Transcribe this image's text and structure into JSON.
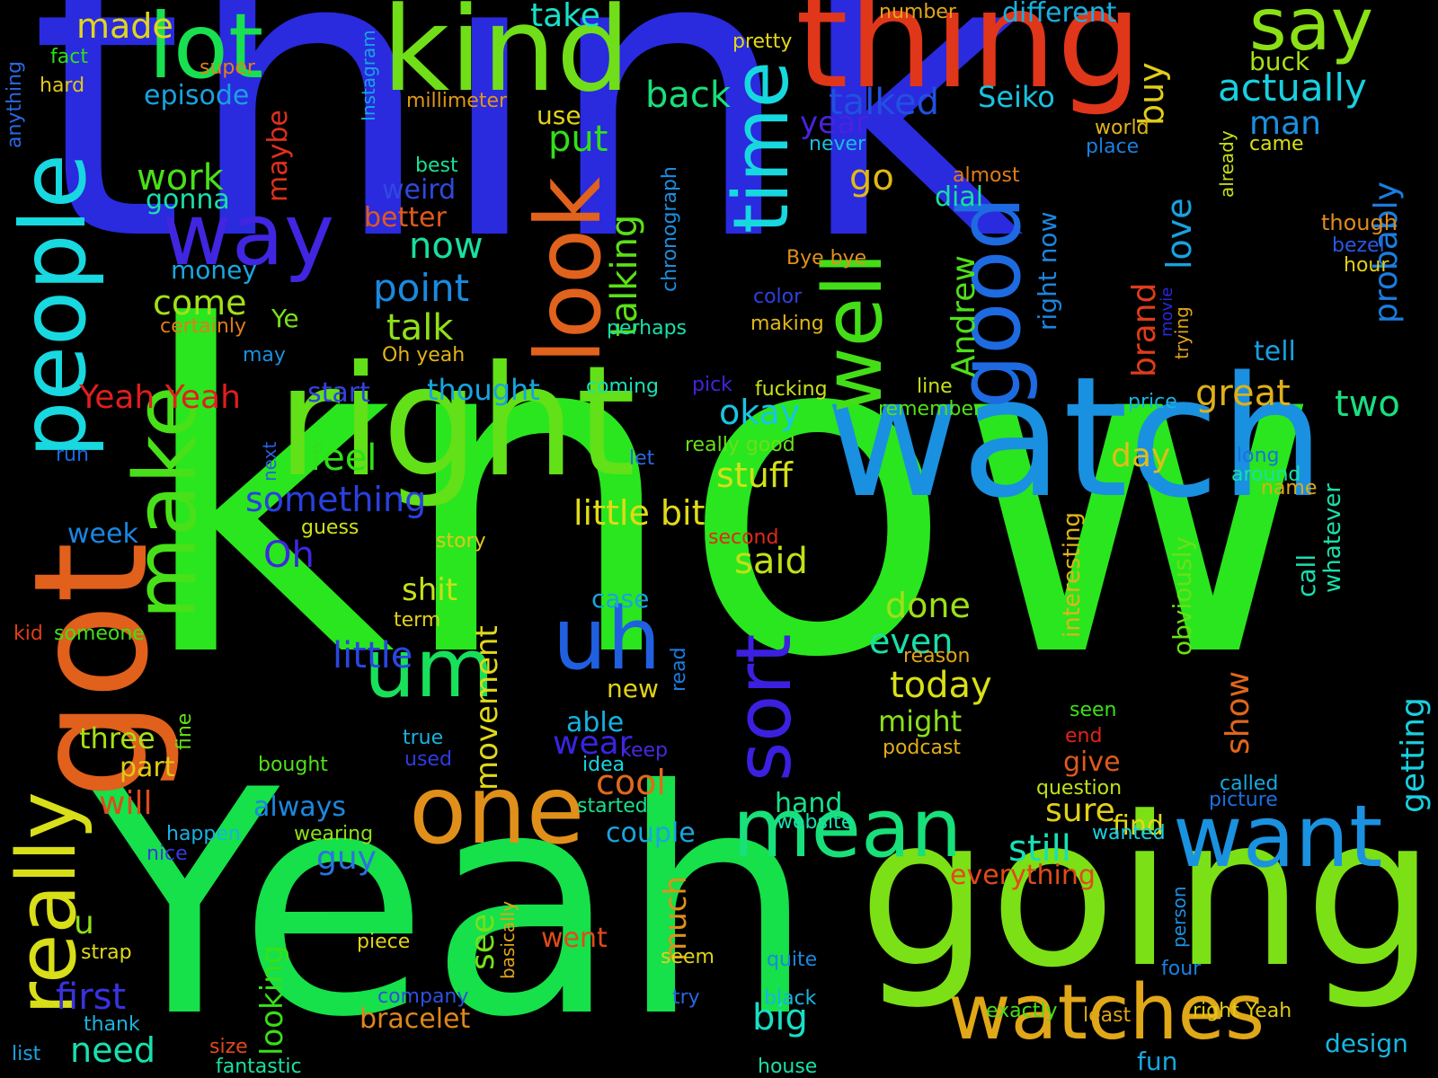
{
  "words": [
    {
      "text": "think",
      "color": "#2a2adf"
    },
    {
      "text": "know",
      "color": "#2ae61e"
    },
    {
      "text": "Yeah",
      "color": "#16e04a"
    },
    {
      "text": "going",
      "color": "#7ce016"
    },
    {
      "text": "watch",
      "color": "#1a90e0"
    },
    {
      "text": "right",
      "color": "#62e018"
    },
    {
      "text": "thing",
      "color": "#e0361a"
    },
    {
      "text": "kind",
      "color": "#70de18"
    },
    {
      "text": "lot",
      "color": "#18e050"
    },
    {
      "text": "say",
      "color": "#8be016"
    },
    {
      "text": "got",
      "color": "#e0601c"
    },
    {
      "text": "people",
      "color": "#18d8e0"
    },
    {
      "text": "way",
      "color": "#4026e0"
    },
    {
      "text": "make",
      "color": "#48e018"
    },
    {
      "text": "really",
      "color": "#d8de18"
    },
    {
      "text": "look",
      "color": "#e0621c"
    },
    {
      "text": "time",
      "color": "#18d8df"
    },
    {
      "text": "well",
      "color": "#44de18"
    },
    {
      "text": "good",
      "color": "#1e6ae0"
    },
    {
      "text": "one",
      "color": "#e0901a"
    },
    {
      "text": "mean",
      "color": "#18e07a"
    },
    {
      "text": "want",
      "color": "#1a92e0"
    },
    {
      "text": "watches",
      "color": "#e0a818"
    },
    {
      "text": "uh",
      "color": "#2060e0"
    },
    {
      "text": "um",
      "color": "#18e05a"
    },
    {
      "text": "sort",
      "color": "#3c20e0"
    },
    {
      "text": "made",
      "color": "#e0d61a"
    },
    {
      "text": "take",
      "color": "#18e0c8"
    },
    {
      "text": "different",
      "color": "#18b0e0"
    },
    {
      "text": "number",
      "color": "#e0a81a"
    },
    {
      "text": "pretty",
      "color": "#e0d81a"
    },
    {
      "text": "Instagram",
      "color": "#18a6e0"
    },
    {
      "text": "buck",
      "color": "#a8e018"
    },
    {
      "text": "actually",
      "color": "#18d0e0"
    },
    {
      "text": "fact",
      "color": "#30e018"
    },
    {
      "text": "super",
      "color": "#e0821a"
    },
    {
      "text": "hard",
      "color": "#e0c818"
    },
    {
      "text": "anything",
      "color": "#2a68e0"
    },
    {
      "text": "millimeter",
      "color": "#e0961a"
    },
    {
      "text": "episode",
      "color": "#18a2e0"
    },
    {
      "text": "back",
      "color": "#18e07a"
    },
    {
      "text": "talked",
      "color": "#2250e0"
    },
    {
      "text": "Seiko",
      "color": "#18c2e0"
    },
    {
      "text": "buy",
      "color": "#e0ce18"
    },
    {
      "text": "man",
      "color": "#1a90e0"
    },
    {
      "text": "use",
      "color": "#e0d218"
    },
    {
      "text": "year",
      "color": "#4a22e0"
    },
    {
      "text": "world",
      "color": "#e0b418"
    },
    {
      "text": "place",
      "color": "#1a80e0"
    },
    {
      "text": "came",
      "color": "#d8e018"
    },
    {
      "text": "never",
      "color": "#18c0e0"
    },
    {
      "text": "already",
      "color": "#c8e018"
    },
    {
      "text": "put",
      "color": "#32e018"
    },
    {
      "text": "maybe",
      "color": "#e0301c"
    },
    {
      "text": "work",
      "color": "#4ae018"
    },
    {
      "text": "gonna",
      "color": "#18e0a8"
    },
    {
      "text": "best",
      "color": "#18e098"
    },
    {
      "text": "chronograph",
      "color": "#1a8ee0"
    },
    {
      "text": "weird",
      "color": "#3048e0"
    },
    {
      "text": "better",
      "color": "#e05a1a"
    },
    {
      "text": "almost",
      "color": "#e07c1a"
    },
    {
      "text": "go",
      "color": "#e0b818"
    },
    {
      "text": "dial",
      "color": "#18e0a0"
    },
    {
      "text": "talking",
      "color": "#5ae018"
    },
    {
      "text": "probably",
      "color": "#1a7ee0"
    },
    {
      "text": "though",
      "color": "#e08c1a"
    },
    {
      "text": "bezel",
      "color": "#2a58e0"
    },
    {
      "text": "hour",
      "color": "#e0d018"
    },
    {
      "text": "now",
      "color": "#18e0a0"
    },
    {
      "text": "money",
      "color": "#18a8e0"
    },
    {
      "text": "point",
      "color": "#1a8ae0"
    },
    {
      "text": "Bye bye",
      "color": "#e0901a"
    },
    {
      "text": "love",
      "color": "#18a2e0"
    },
    {
      "text": "right now",
      "color": "#1a86e0"
    },
    {
      "text": "color",
      "color": "#3040e0"
    },
    {
      "text": "movie",
      "color": "#2a28e0"
    },
    {
      "text": "come",
      "color": "#a2e018"
    },
    {
      "text": "certainly",
      "color": "#e07c1a"
    },
    {
      "text": "Ye",
      "color": "#78e018"
    },
    {
      "text": "perhaps",
      "color": "#18e0a8"
    },
    {
      "text": "making",
      "color": "#e0b818"
    },
    {
      "text": "Andrew",
      "color": "#4ee018"
    },
    {
      "text": "brand",
      "color": "#e03c1a"
    },
    {
      "text": "trying",
      "color": "#e0a41a"
    },
    {
      "text": "talk",
      "color": "#90e018"
    },
    {
      "text": "may",
      "color": "#1a90e0"
    },
    {
      "text": "Oh yeah",
      "color": "#e0b418"
    },
    {
      "text": "tell",
      "color": "#18a0e0"
    },
    {
      "text": "Yeah Yeah",
      "color": "#e01e1e"
    },
    {
      "text": "start",
      "color": "#3442e0"
    },
    {
      "text": "thought",
      "color": "#18a4e0"
    },
    {
      "text": "coming",
      "color": "#18e0b4"
    },
    {
      "text": "pick",
      "color": "#4622e0"
    },
    {
      "text": "fucking",
      "color": "#c8e018"
    },
    {
      "text": "line",
      "color": "#c8e018"
    },
    {
      "text": "okay",
      "color": "#18c6e0"
    },
    {
      "text": "remember",
      "color": "#52e018"
    },
    {
      "text": "price",
      "color": "#18b4e0"
    },
    {
      "text": "great",
      "color": "#e0b018"
    },
    {
      "text": "two",
      "color": "#18e080"
    },
    {
      "text": "really good",
      "color": "#6ae018"
    },
    {
      "text": "feel",
      "color": "#30e018"
    },
    {
      "text": "stuff",
      "color": "#d2e018"
    },
    {
      "text": "day",
      "color": "#e0be18"
    },
    {
      "text": "interesting",
      "color": "#e0b418"
    },
    {
      "text": "long",
      "color": "#1a70e0"
    },
    {
      "text": "around",
      "color": "#18e0a8"
    },
    {
      "text": "name",
      "color": "#e0aa18"
    },
    {
      "text": "whatever",
      "color": "#18e0a8"
    },
    {
      "text": "next",
      "color": "#2860e0"
    },
    {
      "text": "let",
      "color": "#2a6ae0"
    },
    {
      "text": "run",
      "color": "#1a68e0"
    },
    {
      "text": "something",
      "color": "#2a40e0"
    },
    {
      "text": "little bit",
      "color": "#e0da18"
    },
    {
      "text": "week",
      "color": "#1a86e0"
    },
    {
      "text": "guess",
      "color": "#d0e018"
    },
    {
      "text": "story",
      "color": "#e0c818"
    },
    {
      "text": "second",
      "color": "#e02a1a"
    },
    {
      "text": "said",
      "color": "#c0e018"
    },
    {
      "text": "obviously",
      "color": "#68e018"
    },
    {
      "text": "call",
      "color": "#18e0b0"
    },
    {
      "text": "Oh",
      "color": "#3c28e0"
    },
    {
      "text": "shit",
      "color": "#c8e018"
    },
    {
      "text": "term",
      "color": "#e0d018"
    },
    {
      "text": "case",
      "color": "#18a4e0"
    },
    {
      "text": "done",
      "color": "#9ee018"
    },
    {
      "text": "even",
      "color": "#18e0a6"
    },
    {
      "text": "reason",
      "color": "#e0a418"
    },
    {
      "text": "getting",
      "color": "#18d0e0"
    },
    {
      "text": "kid",
      "color": "#e03e1a"
    },
    {
      "text": "someone",
      "color": "#42e018"
    },
    {
      "text": "little",
      "color": "#2a46e0"
    },
    {
      "text": "movement",
      "color": "#e0d818"
    },
    {
      "text": "read",
      "color": "#1a7ce0"
    },
    {
      "text": "today",
      "color": "#d8e018"
    },
    {
      "text": "show",
      "color": "#e0661a"
    },
    {
      "text": "fine",
      "color": "#62e018"
    },
    {
      "text": "new",
      "color": "#e0d218"
    },
    {
      "text": "might",
      "color": "#88e018"
    },
    {
      "text": "seen",
      "color": "#3ee018"
    },
    {
      "text": "three",
      "color": "#a8e018"
    },
    {
      "text": "able",
      "color": "#18b0e0"
    },
    {
      "text": "wear",
      "color": "#3824e0"
    },
    {
      "text": "keep",
      "color": "#4628e0"
    },
    {
      "text": "end",
      "color": "#e0241a"
    },
    {
      "text": "podcast",
      "color": "#e0ae18"
    },
    {
      "text": "part",
      "color": "#e0ca18"
    },
    {
      "text": "true",
      "color": "#18b4e0"
    },
    {
      "text": "give",
      "color": "#e05a1a"
    },
    {
      "text": "bought",
      "color": "#52e018"
    },
    {
      "text": "used",
      "color": "#2e3ce0"
    },
    {
      "text": "idea",
      "color": "#18d6e0"
    },
    {
      "text": "question",
      "color": "#c0e018"
    },
    {
      "text": "will",
      "color": "#e04a1a"
    },
    {
      "text": "cool",
      "color": "#e06a1a"
    },
    {
      "text": "called",
      "color": "#18a8e0"
    },
    {
      "text": "always",
      "color": "#1a88e0"
    },
    {
      "text": "hand",
      "color": "#18e08a"
    },
    {
      "text": "sure",
      "color": "#e0d018"
    },
    {
      "text": "picture",
      "color": "#1a70e0"
    },
    {
      "text": "started",
      "color": "#18e08e"
    },
    {
      "text": "find",
      "color": "#e0da18"
    },
    {
      "text": "happen",
      "color": "#18b2e0"
    },
    {
      "text": "wearing",
      "color": "#8ce018"
    },
    {
      "text": "couple",
      "color": "#18a6e0"
    },
    {
      "text": "website",
      "color": "#18e0ac"
    },
    {
      "text": "wanted",
      "color": "#18d0e0"
    },
    {
      "text": "nice",
      "color": "#3a38e0"
    },
    {
      "text": "guy",
      "color": "#2a72e0"
    },
    {
      "text": "still",
      "color": "#18e0b6"
    },
    {
      "text": "everything",
      "color": "#e04a1a"
    },
    {
      "text": "u",
      "color": "#8ee018"
    },
    {
      "text": "looking",
      "color": "#38e018"
    },
    {
      "text": "much",
      "color": "#e09018"
    },
    {
      "text": "see",
      "color": "#78e018"
    },
    {
      "text": "basically",
      "color": "#e0a418"
    },
    {
      "text": "person",
      "color": "#1a92e0"
    },
    {
      "text": "strap",
      "color": "#e0da18"
    },
    {
      "text": "piece",
      "color": "#e0d218"
    },
    {
      "text": "went",
      "color": "#e04a1a"
    },
    {
      "text": "seem",
      "color": "#e0d418"
    },
    {
      "text": "quite",
      "color": "#1a88e0"
    },
    {
      "text": "four",
      "color": "#1a80e0"
    },
    {
      "text": "first",
      "color": "#3a32e0"
    },
    {
      "text": "big",
      "color": "#18e0c4"
    },
    {
      "text": "company",
      "color": "#2e50e0"
    },
    {
      "text": "try",
      "color": "#2a66e0"
    },
    {
      "text": "black",
      "color": "#18b4e0"
    },
    {
      "text": "exactly",
      "color": "#48e018"
    },
    {
      "text": "least",
      "color": "#e0a618"
    },
    {
      "text": "right Yeah",
      "color": "#e0ca18"
    },
    {
      "text": "thank",
      "color": "#18b4e0"
    },
    {
      "text": "need",
      "color": "#18e0b0"
    },
    {
      "text": "bracelet",
      "color": "#e0861a"
    },
    {
      "text": "design",
      "color": "#18b6e0"
    },
    {
      "text": "list",
      "color": "#18a2e0"
    },
    {
      "text": "size",
      "color": "#e04a1a"
    },
    {
      "text": "fantastic",
      "color": "#18e0a0"
    },
    {
      "text": "house",
      "color": "#18e0a4"
    },
    {
      "text": "fun",
      "color": "#18a8e0"
    }
  ]
}
